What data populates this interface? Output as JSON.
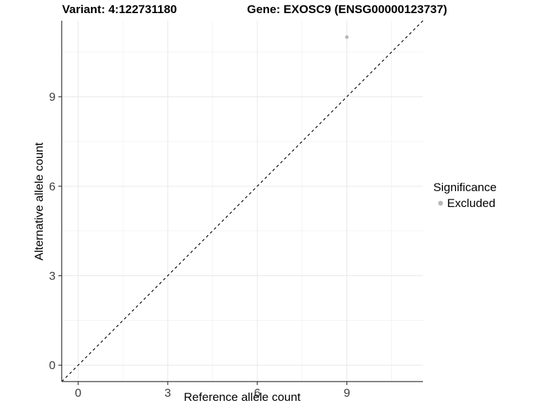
{
  "chart_data": {
    "type": "scatter",
    "title_left": "Variant: 4:122731180",
    "title_right": "Gene: EXOSC9 (ENSG00000123737)",
    "xlabel": "Reference allele count",
    "ylabel": "Alternative allele count",
    "xlim": [
      -0.55,
      11.55
    ],
    "ylim": [
      -0.55,
      11.55
    ],
    "x_ticks": [
      0,
      3,
      6,
      9
    ],
    "y_ticks": [
      0,
      3,
      6,
      9
    ],
    "grid": true,
    "minor_grid": true,
    "points": [
      {
        "x": 9,
        "y": 11,
        "series": "Excluded",
        "color": "#b8b8b8"
      }
    ],
    "reference_line": {
      "type": "identity",
      "style": "dashed",
      "color": "#000000"
    },
    "legend": {
      "title": "Significance",
      "position": "right",
      "entries": [
        {
          "label": "Excluded",
          "color": "#b8b8b8"
        }
      ]
    },
    "colors": {
      "background": "#ffffff",
      "grid_major": "#e9e9e9",
      "grid_minor": "#f2f2f2",
      "axis": "#333333",
      "tick_text": "#404040",
      "title_text": "#000000"
    }
  }
}
